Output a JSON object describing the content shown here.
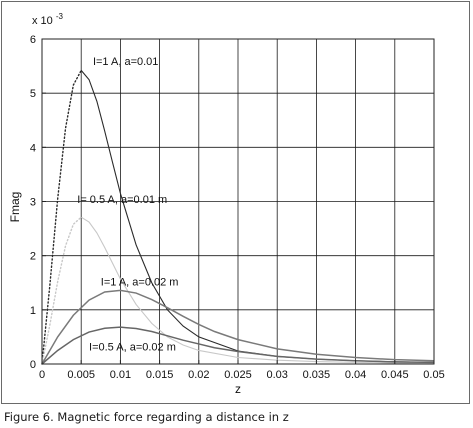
{
  "caption": "Figure 6. Magnetic force regarding a distance in z",
  "chart_data": {
    "type": "line",
    "xlabel": "z",
    "ylabel": "Fmag",
    "y_multiplier": "x 10",
    "y_multiplier_exponent": "-3",
    "xlim": [
      0,
      0.05
    ],
    "ylim": [
      0,
      6
    ],
    "grid": true,
    "x_ticks": [
      "0",
      "0.005",
      "0.01",
      "0.015",
      "0.02",
      "0.025",
      "0.03",
      "0.035",
      "0.04",
      "0.045",
      "0.05"
    ],
    "y_ticks": [
      "0",
      "1",
      "2",
      "3",
      "4",
      "5",
      "6"
    ],
    "series": [
      {
        "name": "I=1 A, a=0.01",
        "color": "#2a2a2a",
        "style": "dotted-then-solid",
        "x": [
          0,
          0.001,
          0.002,
          0.003,
          0.004,
          0.005,
          0.006,
          0.007,
          0.008,
          0.009,
          0.01,
          0.012,
          0.014,
          0.016,
          0.018,
          0.02,
          0.025,
          0.03,
          0.035,
          0.04,
          0.045,
          0.05
        ],
        "y": [
          0,
          1.45,
          3.05,
          4.35,
          5.15,
          5.42,
          5.25,
          4.85,
          4.3,
          3.72,
          3.15,
          2.2,
          1.5,
          1.0,
          0.7,
          0.5,
          0.24,
          0.14,
          0.09,
          0.06,
          0.04,
          0.03
        ]
      },
      {
        "name": "I=0.5 A, a=0.01 m",
        "color": "#c8c8c8",
        "style": "dotted-then-solid",
        "x": [
          0,
          0.001,
          0.002,
          0.003,
          0.004,
          0.005,
          0.006,
          0.007,
          0.008,
          0.009,
          0.01,
          0.012,
          0.014,
          0.016,
          0.018,
          0.02,
          0.025,
          0.03,
          0.035,
          0.04,
          0.045,
          0.05
        ],
        "y": [
          0,
          0.72,
          1.52,
          2.18,
          2.58,
          2.71,
          2.62,
          2.42,
          2.15,
          1.86,
          1.57,
          1.1,
          0.75,
          0.5,
          0.35,
          0.25,
          0.12,
          0.07,
          0.045,
          0.03,
          0.02,
          0.015
        ]
      },
      {
        "name": "I=1 A, a=0.02 m",
        "color": "#7a7a7a",
        "style": "solid",
        "x": [
          0,
          0.002,
          0.004,
          0.006,
          0.008,
          0.01,
          0.012,
          0.014,
          0.016,
          0.018,
          0.02,
          0.022,
          0.025,
          0.03,
          0.035,
          0.04,
          0.045,
          0.05
        ],
        "y": [
          0,
          0.5,
          0.9,
          1.18,
          1.33,
          1.36,
          1.31,
          1.19,
          1.04,
          0.88,
          0.73,
          0.6,
          0.45,
          0.28,
          0.18,
          0.12,
          0.08,
          0.06
        ]
      },
      {
        "name": "I=0.5 A, a=0.02 m",
        "color": "#666666",
        "style": "solid",
        "x": [
          0,
          0.002,
          0.004,
          0.006,
          0.008,
          0.01,
          0.012,
          0.014,
          0.016,
          0.018,
          0.02,
          0.022,
          0.025,
          0.03,
          0.035,
          0.04,
          0.045,
          0.05
        ],
        "y": [
          0,
          0.25,
          0.45,
          0.59,
          0.66,
          0.68,
          0.655,
          0.6,
          0.52,
          0.44,
          0.37,
          0.3,
          0.23,
          0.14,
          0.09,
          0.06,
          0.04,
          0.03
        ]
      }
    ],
    "annotations": [
      {
        "text": "I=1 A, a=0.01",
        "x": 0.0065,
        "y": 5.52
      },
      {
        "text": "I= 0.5 A, a=0.01 m",
        "x": 0.0045,
        "y": 2.97
      },
      {
        "text": "I=1 A, a=0.02 m",
        "x": 0.0075,
        "y": 1.45
      },
      {
        "text": "I=0.5 A, a=0.02 m",
        "x": 0.006,
        "y": 0.25
      }
    ]
  }
}
